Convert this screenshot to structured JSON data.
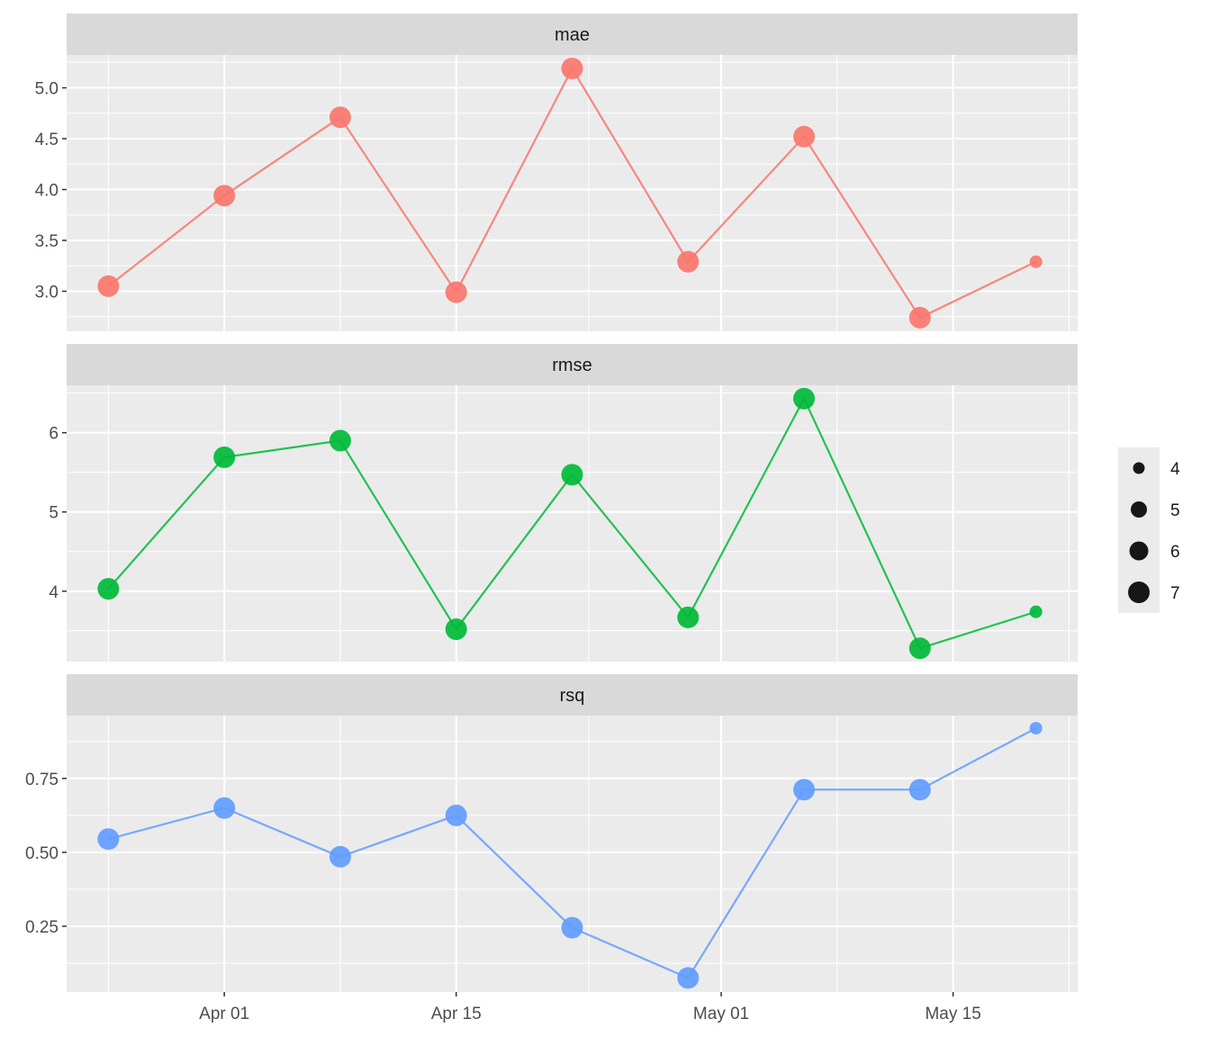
{
  "chart_data": {
    "type": "line",
    "facet_by": "metric",
    "x_type": "date",
    "x_breaks": [
      "Apr 01",
      "Apr 15",
      "May 01",
      "May 15"
    ],
    "x": [
      "2023-03-25",
      "2023-04-01",
      "2023-04-08",
      "2023-04-15",
      "2023-04-22",
      "2023-04-29",
      "2023-05-06",
      "2023-05-13",
      "2023-05-20"
    ],
    "grid": true,
    "legend_position": "right",
    "size_legend": {
      "title": "",
      "entries": [
        "4",
        "5",
        "6",
        "7"
      ]
    },
    "panels": [
      {
        "name": "mae",
        "color": "#F8766D",
        "values": [
          3.05,
          3.94,
          4.71,
          2.99,
          5.19,
          3.29,
          4.52,
          2.74,
          3.29
        ],
        "point_size": [
          6,
          6,
          6,
          6,
          6,
          6,
          6,
          6,
          4
        ],
        "y_range": [
          2.73,
          5.2
        ],
        "y_ticks": [
          "3.0",
          "3.5",
          "4.0",
          "4.5",
          "5.0"
        ]
      },
      {
        "name": "rmse",
        "color": "#00BA38",
        "values": [
          4.03,
          5.69,
          5.9,
          3.52,
          5.47,
          3.67,
          6.43,
          3.28,
          3.74
        ],
        "point_size": [
          6,
          6,
          6,
          6,
          6,
          6,
          6,
          6,
          4
        ],
        "y_range": [
          3.27,
          6.44
        ],
        "y_ticks": [
          "4",
          "5",
          "6"
        ]
      },
      {
        "name": "rsq",
        "color": "#619CFF",
        "values": [
          0.545,
          0.65,
          0.485,
          0.625,
          0.245,
          0.075,
          0.712,
          0.712,
          0.92
        ],
        "point_size": [
          6,
          6,
          6,
          6,
          6,
          6,
          6,
          6,
          4
        ],
        "y_range": [
          0.07,
          0.92
        ],
        "y_ticks": [
          "0.25",
          "0.50",
          "0.75"
        ]
      }
    ]
  }
}
